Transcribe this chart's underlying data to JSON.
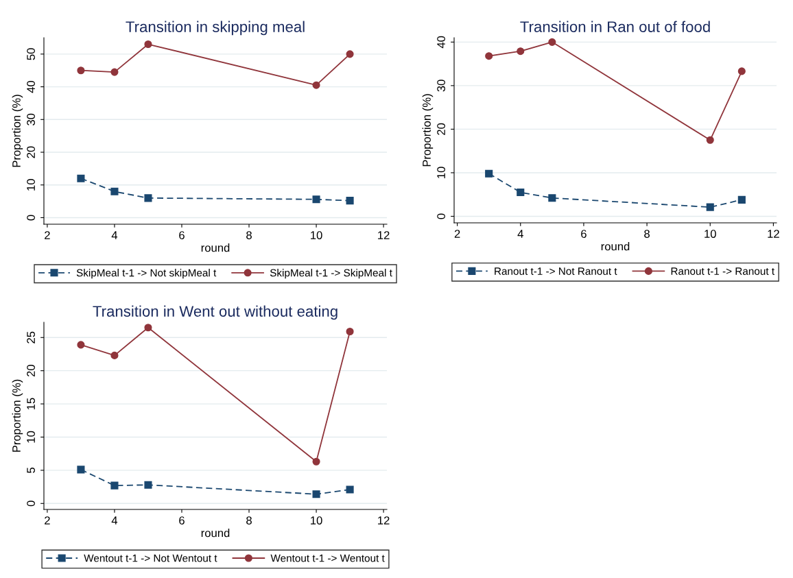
{
  "chart_data": [
    {
      "type": "line",
      "title": "Transition in skipping meal",
      "xlabel": "round",
      "ylabel": "Proportion (%)",
      "x": [
        3,
        4,
        5,
        10,
        11
      ],
      "xlim": [
        1.9,
        12.1
      ],
      "xticks": [
        2,
        4,
        6,
        8,
        10,
        12
      ],
      "ylim": [
        -2,
        55
      ],
      "yticks": [
        0,
        10,
        20,
        30,
        40,
        50
      ],
      "grid": "y",
      "legend": "bottom",
      "series": [
        {
          "name": "SkipMeal t-1 -> Not skipMeal t",
          "color": "#1a476f",
          "marker": "square",
          "line_style": "dashed",
          "values": [
            12,
            8,
            6,
            5.6,
            5.2
          ]
        },
        {
          "name": "SkipMeal t-1 -> SkipMeal t",
          "color": "#90353b",
          "marker": "circle",
          "line_style": "solid",
          "values": [
            45,
            44.5,
            53,
            40.5,
            50
          ]
        }
      ]
    },
    {
      "type": "line",
      "title": "Transition in Ran out of food",
      "xlabel": "round",
      "ylabel": "Proportion (%)",
      "x": [
        3,
        4,
        5,
        10,
        11
      ],
      "xlim": [
        1.9,
        12.1
      ],
      "xticks": [
        2,
        4,
        6,
        8,
        10,
        12
      ],
      "ylim": [
        -1.5,
        41
      ],
      "yticks": [
        0,
        10,
        20,
        30,
        40
      ],
      "grid": "y",
      "legend": "bottom",
      "series": [
        {
          "name": "Ranout t-1 -> Not Ranout t",
          "color": "#1a476f",
          "marker": "square",
          "line_style": "dashed",
          "values": [
            9.8,
            5.5,
            4.2,
            2.1,
            3.8
          ]
        },
        {
          "name": "Ranout t-1 -> Ranout t",
          "color": "#90353b",
          "marker": "circle",
          "line_style": "solid",
          "values": [
            36.8,
            37.9,
            40,
            17.5,
            33.3
          ]
        }
      ]
    },
    {
      "type": "line",
      "title": "Transition in Went out without eating",
      "xlabel": "round",
      "ylabel": "Proportion (%)",
      "x": [
        3,
        4,
        5,
        10,
        11
      ],
      "xlim": [
        1.9,
        12.1
      ],
      "xticks": [
        2,
        4,
        6,
        8,
        10,
        12
      ],
      "ylim": [
        -0.9,
        27.3
      ],
      "yticks": [
        0,
        5,
        10,
        15,
        20,
        25
      ],
      "grid": "y",
      "legend": "bottom",
      "series": [
        {
          "name": "Wentout t-1 -> Not Wentout t",
          "color": "#1a476f",
          "marker": "square",
          "line_style": "dashed",
          "values": [
            5.1,
            2.7,
            2.8,
            1.4,
            2.1
          ]
        },
        {
          "name": "Wentout t-1 -> Wentout t",
          "color": "#90353b",
          "marker": "circle",
          "line_style": "solid",
          "values": [
            23.9,
            22.3,
            26.5,
            6.3,
            25.9
          ]
        }
      ]
    }
  ]
}
